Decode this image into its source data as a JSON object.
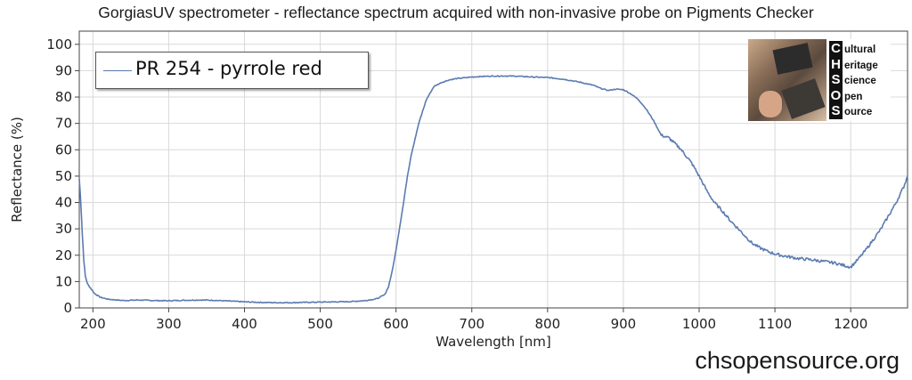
{
  "page": {
    "title": "GorgiasUV spectrometer - reflectance spectrum acquired with non-invasive probe on Pigments Checker",
    "watermark": "chsopensource.org"
  },
  "logo": {
    "letters": [
      "C",
      "H",
      "S",
      "O",
      "S"
    ],
    "words": [
      "ultural",
      "eritage",
      "cience",
      "pen",
      "ource"
    ]
  },
  "chart_data": {
    "type": "line",
    "title": "GorgiasUV spectrometer - reflectance spectrum acquired with non-invasive probe on Pigments Checker",
    "xlabel": "Wavelength [nm]",
    "ylabel": "Reflectance (%)",
    "xlim": [
      182,
      1275
    ],
    "ylim": [
      0,
      105
    ],
    "x_ticks": [
      200,
      300,
      400,
      500,
      600,
      700,
      800,
      900,
      1000,
      1100,
      1200
    ],
    "y_ticks": [
      0,
      10,
      20,
      30,
      40,
      50,
      60,
      70,
      80,
      90,
      100
    ],
    "grid": true,
    "legend_position": "top-left",
    "line_color": "#5b7bb0",
    "series": [
      {
        "name": "PR 254 - pyrrole red",
        "x": [
          182,
          184,
          186,
          188,
          190,
          193,
          197,
          202,
          210,
          220,
          240,
          260,
          280,
          300,
          320,
          340,
          360,
          380,
          400,
          420,
          440,
          460,
          480,
          500,
          520,
          540,
          560,
          575,
          585,
          590,
          595,
          600,
          605,
          610,
          615,
          620,
          630,
          640,
          650,
          660,
          670,
          680,
          700,
          720,
          740,
          760,
          780,
          800,
          820,
          840,
          860,
          870,
          880,
          890,
          900,
          910,
          920,
          930,
          940,
          950,
          960,
          975,
          990,
          1000,
          1010,
          1020,
          1030,
          1040,
          1050,
          1060,
          1070,
          1080,
          1090,
          1100,
          1110,
          1120,
          1130,
          1140,
          1150,
          1160,
          1170,
          1180,
          1190,
          1200,
          1205,
          1210,
          1220,
          1230,
          1240,
          1250,
          1260,
          1270,
          1275
        ],
        "y": [
          49,
          40,
          28,
          18,
          12,
          9,
          7.5,
          5.5,
          4,
          3.3,
          2.8,
          3,
          2.8,
          2.7,
          2.9,
          3,
          2.9,
          2.6,
          2.3,
          2.1,
          2,
          2,
          2.1,
          2.2,
          2.3,
          2.4,
          2.8,
          3.5,
          5,
          8,
          14,
          22,
          31,
          40,
          50,
          58,
          70,
          79,
          84,
          85.5,
          86.5,
          87,
          87.6,
          87.9,
          88,
          87.9,
          87.6,
          87.4,
          86.8,
          85.8,
          84.5,
          83.3,
          82.5,
          83,
          82.8,
          81.2,
          79,
          75.5,
          71,
          65.5,
          64.5,
          60.5,
          55,
          50,
          44.5,
          40,
          37,
          33.5,
          30.5,
          27.5,
          24.5,
          22.8,
          21.5,
          20.5,
          19.8,
          19.3,
          18.8,
          18.5,
          18.2,
          17.8,
          17.4,
          17,
          16.2,
          15.5,
          17,
          18.5,
          22,
          26,
          30,
          35,
          40,
          46,
          50
        ]
      }
    ]
  }
}
